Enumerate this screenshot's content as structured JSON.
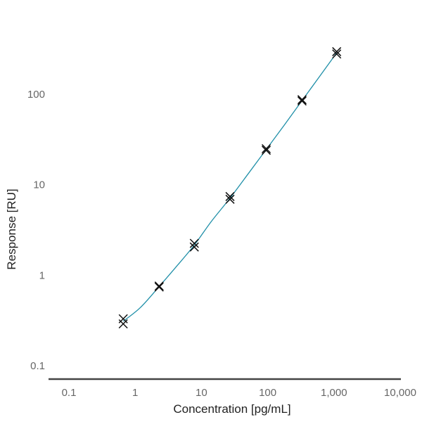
{
  "chart_data": {
    "type": "scatter",
    "title": "",
    "xlabel": "Concentration [pg/mL]",
    "ylabel": "Response [RU]",
    "x_scale": "log",
    "y_scale": "log",
    "xlim": [
      0.05,
      10000
    ],
    "ylim": [
      0.07,
      500
    ],
    "x_ticks": [
      {
        "value": 0.1,
        "label": "0.1"
      },
      {
        "value": 1,
        "label": "1"
      },
      {
        "value": 10,
        "label": "10"
      },
      {
        "value": 100,
        "label": "100"
      },
      {
        "value": 1000,
        "label": "1,000"
      },
      {
        "value": 10000,
        "label": "10,000"
      }
    ],
    "y_ticks": [
      {
        "value": 0.1,
        "label": "0.1"
      },
      {
        "value": 1,
        "label": "1"
      },
      {
        "value": 10,
        "label": "10"
      },
      {
        "value": 100,
        "label": "100"
      }
    ],
    "grid": false,
    "series": [
      {
        "type": "scatter",
        "marker": "x",
        "color": "#111111",
        "points": [
          {
            "x": 0.66,
            "y": 0.33
          },
          {
            "x": 0.66,
            "y": 0.29
          },
          {
            "x": 2.3,
            "y": 0.76
          },
          {
            "x": 2.3,
            "y": 0.74
          },
          {
            "x": 7.8,
            "y": 2.25
          },
          {
            "x": 7.8,
            "y": 2.05
          },
          {
            "x": 27,
            "y": 7.4
          },
          {
            "x": 27,
            "y": 6.9
          },
          {
            "x": 95,
            "y": 25
          },
          {
            "x": 95,
            "y": 24
          },
          {
            "x": 330,
            "y": 87
          },
          {
            "x": 330,
            "y": 84
          },
          {
            "x": 1100,
            "y": 295
          },
          {
            "x": 1100,
            "y": 278
          }
        ]
      },
      {
        "type": "line",
        "color": "#1f8fa8",
        "points": [
          {
            "x": 0.66,
            "y": 0.31
          },
          {
            "x": 1.2,
            "y": 0.44
          },
          {
            "x": 2.3,
            "y": 0.75
          },
          {
            "x": 4.2,
            "y": 1.25
          },
          {
            "x": 7.8,
            "y": 2.15
          },
          {
            "x": 14,
            "y": 3.9
          },
          {
            "x": 27,
            "y": 7.1
          },
          {
            "x": 50,
            "y": 13
          },
          {
            "x": 95,
            "y": 24.5
          },
          {
            "x": 180,
            "y": 46
          },
          {
            "x": 330,
            "y": 85
          },
          {
            "x": 600,
            "y": 155
          },
          {
            "x": 1100,
            "y": 286
          }
        ]
      }
    ]
  }
}
